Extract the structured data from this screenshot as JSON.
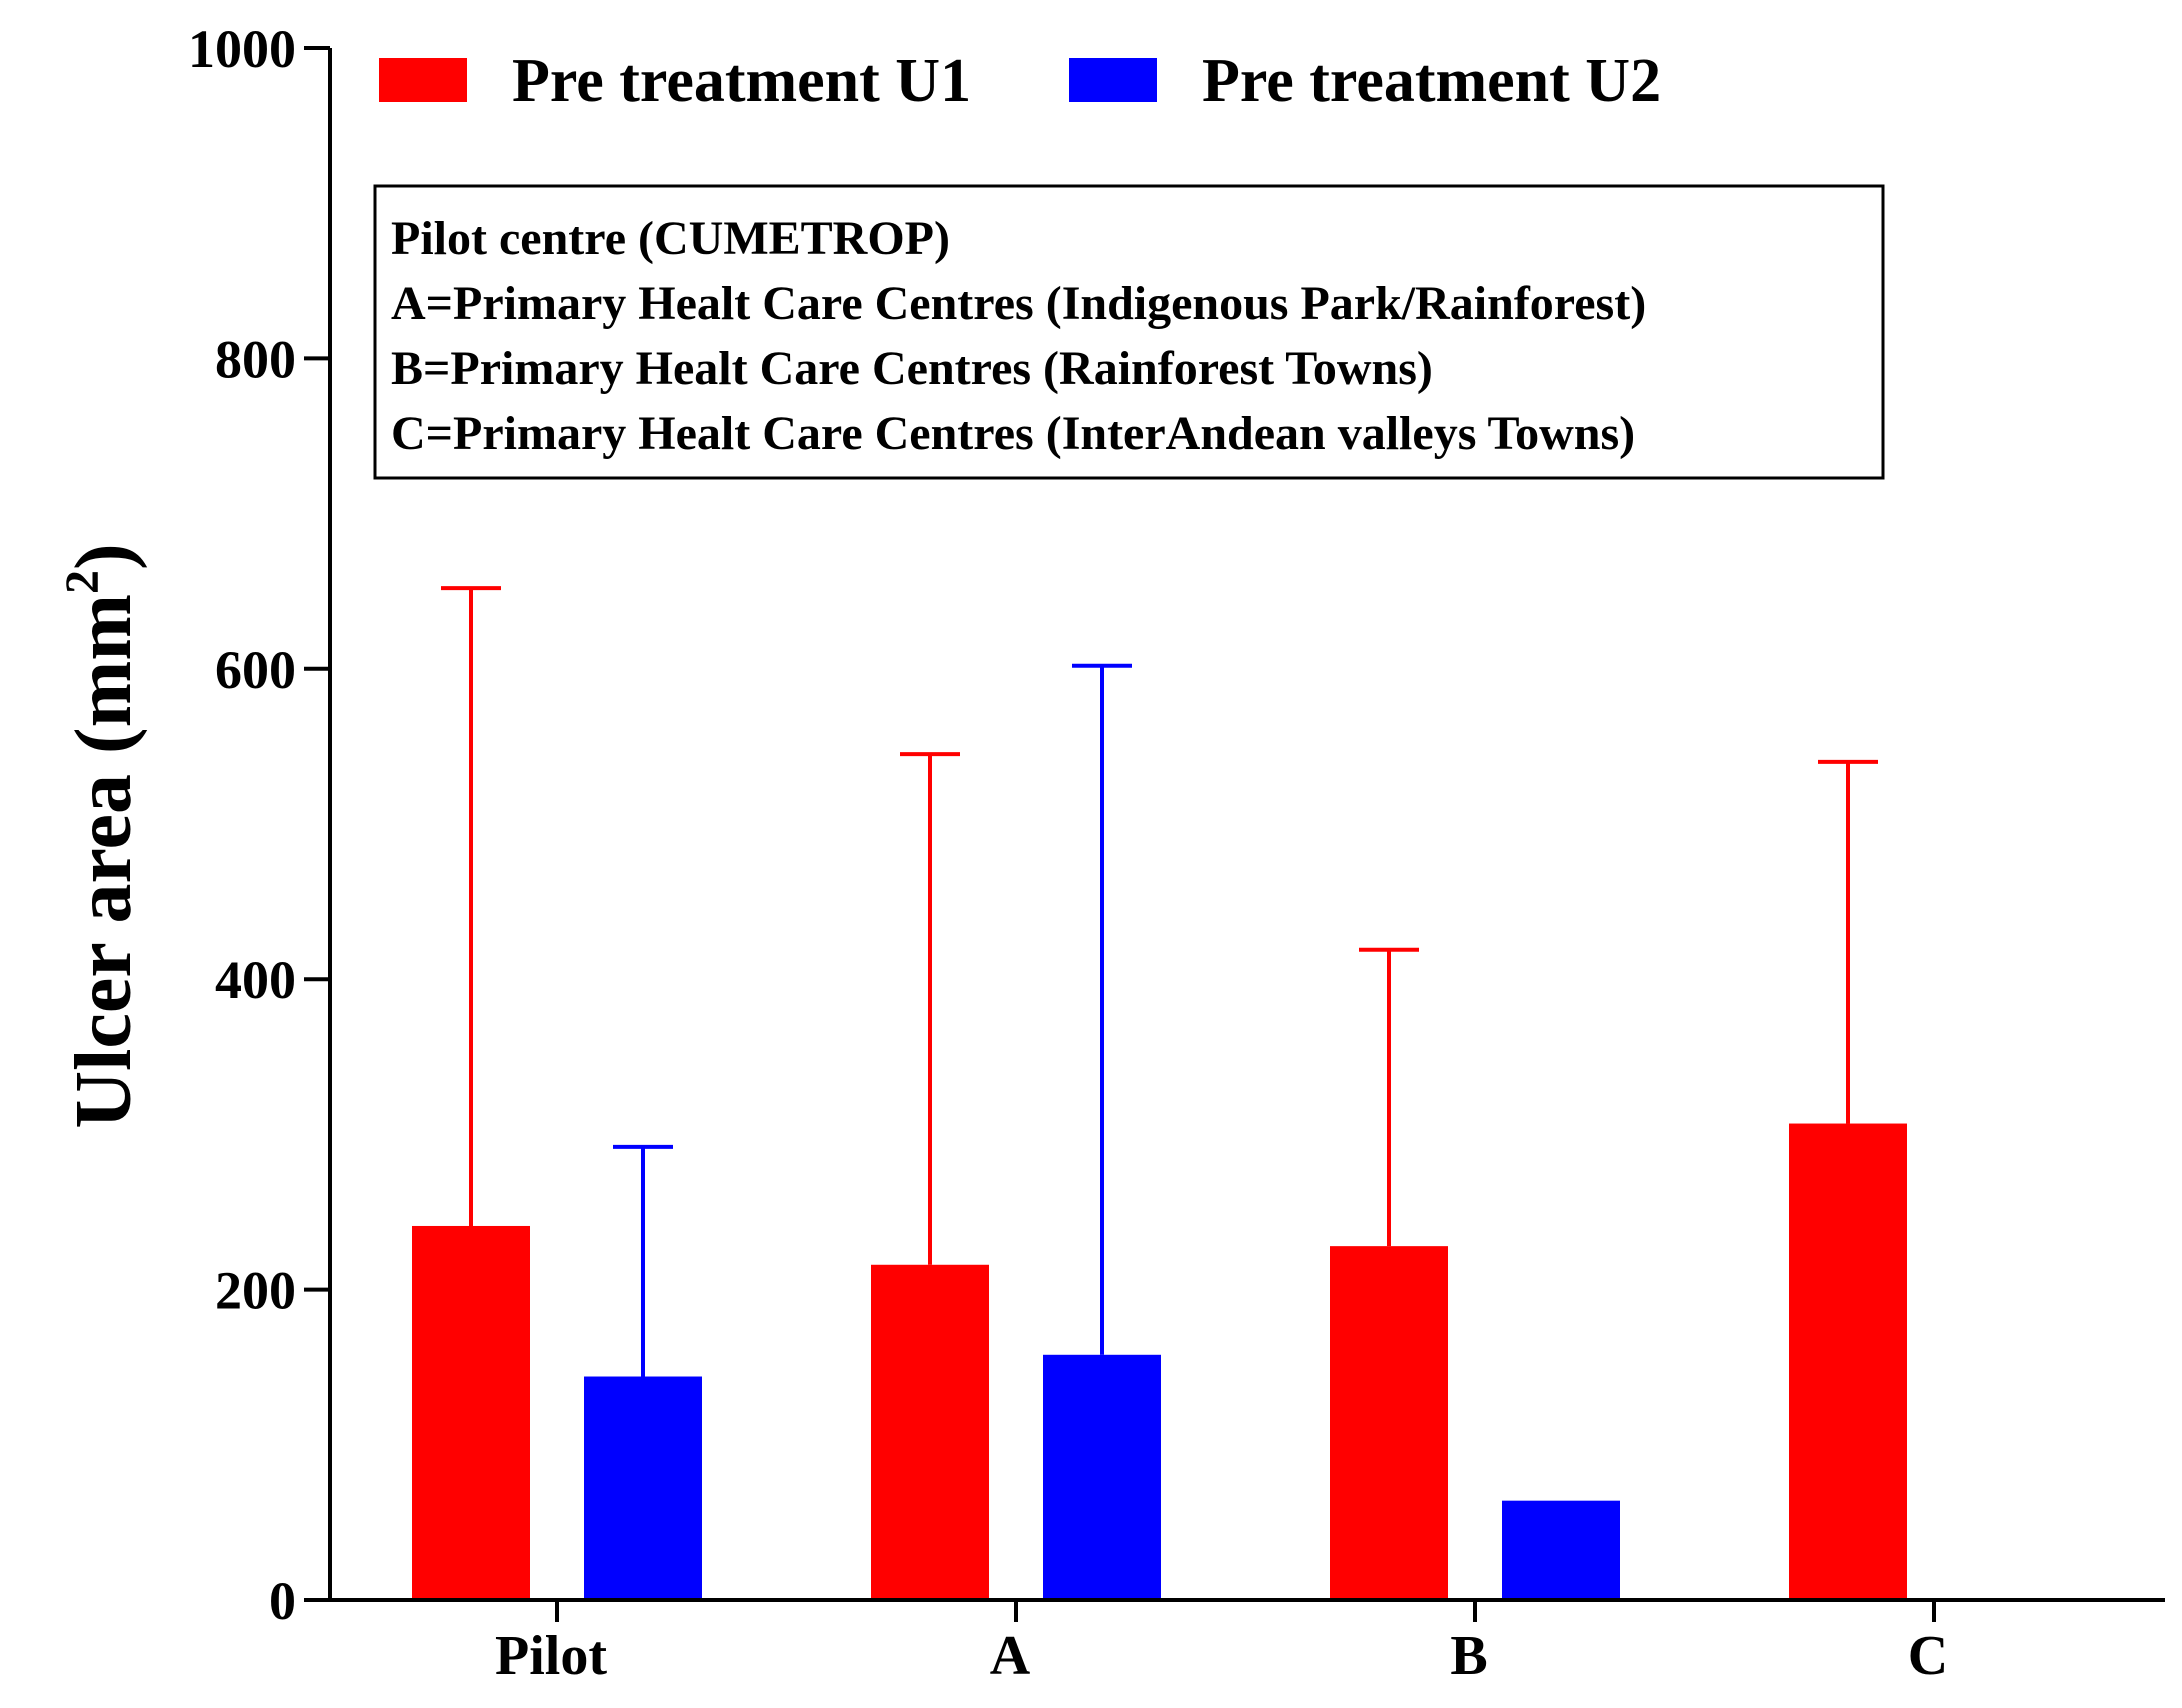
{
  "chart_data": {
    "type": "bar",
    "title": "",
    "xlabel": "",
    "ylabel": "Ulcer area (mm",
    "ylabel_superscript": "2",
    "ylabel_close": ")",
    "ylim": [
      0,
      1000
    ],
    "yticks": [
      "0",
      "200",
      "400",
      "600",
      "800",
      "1000"
    ],
    "categories": [
      "Pilot",
      "A",
      "B",
      "C"
    ],
    "series": [
      {
        "name": "Pre treatment U1",
        "color": "#ff0000",
        "values": [
          241,
          216,
          228,
          307
        ],
        "error_upper": [
          652,
          545,
          419,
          540
        ]
      },
      {
        "name": "Pre treatment U2",
        "color": "#0000ff",
        "values": [
          144,
          158,
          64,
          null
        ],
        "error_upper": [
          292,
          602,
          null,
          null
        ]
      }
    ],
    "legend_position": "top-left",
    "grid": false,
    "annotation": [
      "Pilot centre (CUMETROP)",
      "A=Primary Healt Care Centres (Indigenous Park/Rainforest)",
      "B=Primary Healt Care Centres (Rainforest Towns)",
      "C=Primary Healt Care Centres (InterAndean valleys Towns)"
    ]
  }
}
